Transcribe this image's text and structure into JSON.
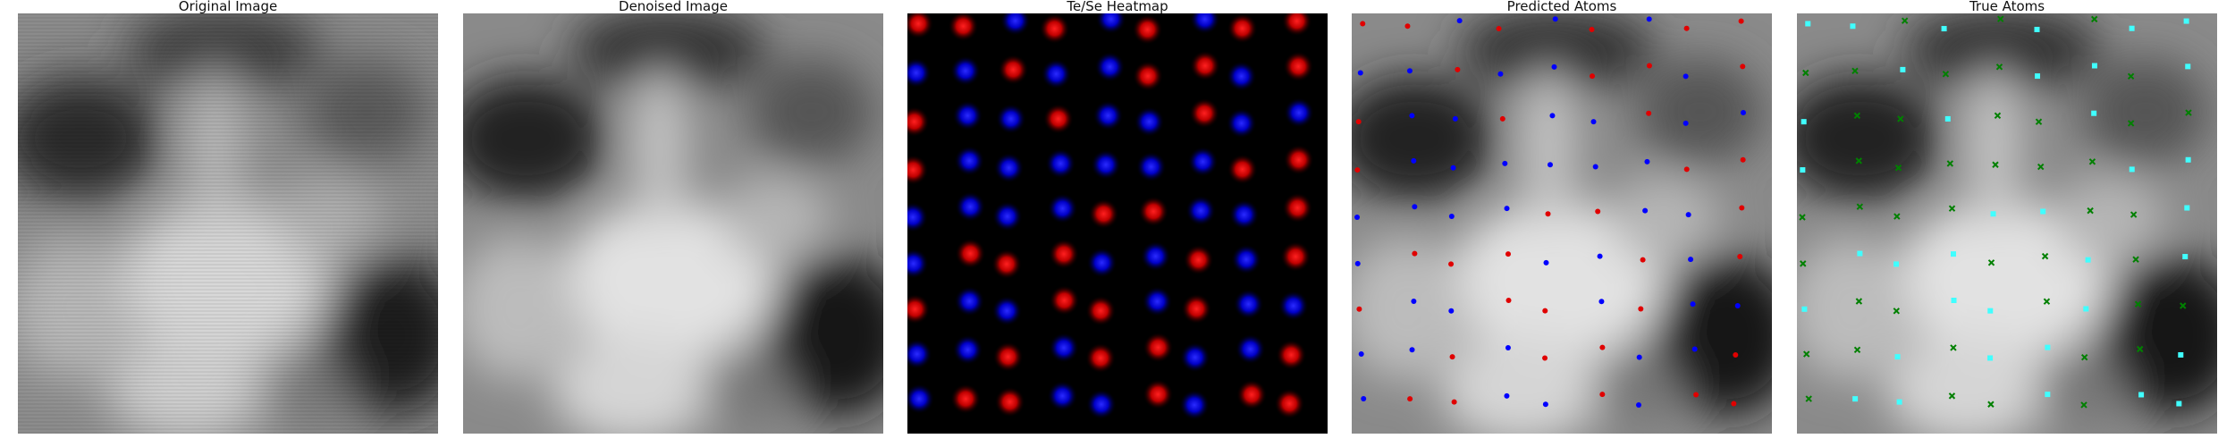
{
  "figure": {
    "panels": [
      {
        "id": "original",
        "title": "Original Image"
      },
      {
        "id": "denoised",
        "title": "Denoised Image"
      },
      {
        "id": "heatmap",
        "title": "Te/Se Heatmap"
      },
      {
        "id": "predicted",
        "title": "Predicted Atoms"
      },
      {
        "id": "true",
        "title": "True Atoms"
      }
    ],
    "colors": {
      "te_atom": "#e00000",
      "se_atom": "#0000ff",
      "true_te": "#40ffff",
      "true_se": "#008000",
      "heatmap_background": "#000000"
    },
    "marker_legend": {
      "predicted": "dots",
      "true": "cyan squares / green x marks"
    }
  }
}
